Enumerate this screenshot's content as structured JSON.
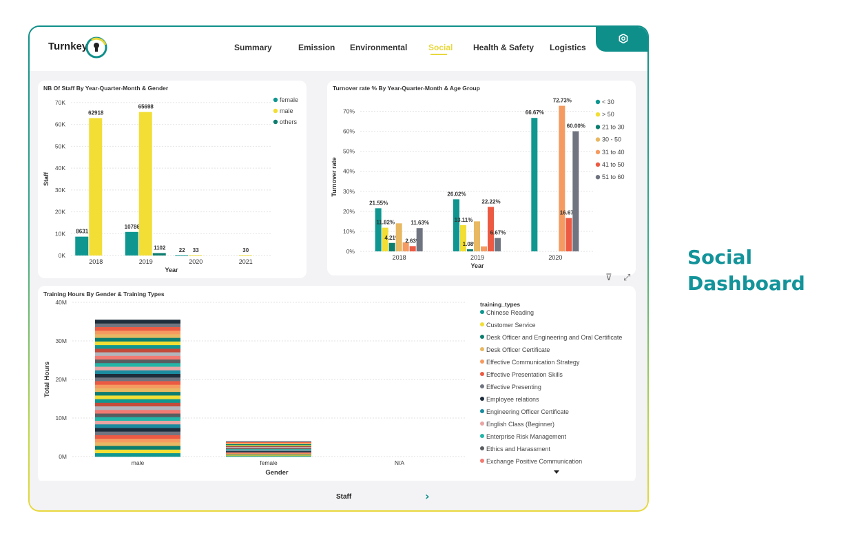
{
  "app": {
    "logo_text": "Turnkey"
  },
  "nav": {
    "items": [
      "Summary",
      "Emission",
      "Environmental",
      "Social",
      "Health & Safety",
      "Logistics"
    ],
    "active": "Social"
  },
  "side_title": {
    "line1": "Social",
    "line2": "Dashboard"
  },
  "footer": {
    "label": "Staff",
    "arrow": "›"
  },
  "tools": {
    "filter": "⊽",
    "focus": "⤢"
  },
  "colors": {
    "teal": "#0f9690",
    "yellow": "#f2de34",
    "darkteal": "#0c7d6e",
    "sand": "#e8b862",
    "orange": "#f59b61",
    "red": "#ec5a43",
    "gray": "#6f7480"
  },
  "chart_data": [
    {
      "type": "bar",
      "title": "NB Of Staff By Year-Quarter-Month & Gender",
      "xlabel": "Year",
      "ylabel": "Staff",
      "categories": [
        "2018",
        "2019",
        "2020",
        "2021"
      ],
      "ylim": [
        0,
        70000
      ],
      "ytick_labels": [
        "0K",
        "10K",
        "20K",
        "30K",
        "40K",
        "50K",
        "60K",
        "70K"
      ],
      "series": [
        {
          "name": "female",
          "color": "#0f9690",
          "values": [
            8631,
            10786,
            22,
            null
          ],
          "labels": [
            "8631",
            "10786",
            "22",
            ""
          ]
        },
        {
          "name": "male",
          "color": "#f2de34",
          "values": [
            62918,
            65698,
            33,
            30
          ],
          "labels": [
            "62918",
            "65698",
            "33",
            "30"
          ]
        },
        {
          "name": "others",
          "color": "#0c7d6e",
          "values": [
            null,
            1102,
            null,
            null
          ],
          "labels": [
            "",
            "1102",
            "",
            ""
          ]
        }
      ],
      "legend": "top-right"
    },
    {
      "type": "bar",
      "title": "Turnover rate % By Year-Quarter-Month & Age Group",
      "xlabel": "Year",
      "ylabel": "Turnover rate",
      "categories": [
        "2018",
        "2019",
        "2020"
      ],
      "ylim": [
        0,
        75
      ],
      "ytick_labels": [
        "0%",
        "10%",
        "20%",
        "30%",
        "40%",
        "50%",
        "60%",
        "70%"
      ],
      "series": [
        {
          "name": "< 30",
          "color": "#0f9690",
          "values": [
            21.55,
            26.02,
            66.67
          ],
          "labels": [
            "21.55%",
            "26.02%",
            "66.67%"
          ]
        },
        {
          "name": "> 50",
          "color": "#f2de34",
          "values": [
            11.82,
            13.11,
            0
          ],
          "labels": [
            "11.82%",
            "13.11%",
            ""
          ]
        },
        {
          "name": "21 to 30",
          "color": "#0c7d6e",
          "values": [
            4.21,
            1.08,
            0
          ],
          "labels": [
            "4.21%",
            "1.08%",
            ""
          ]
        },
        {
          "name": "30 - 50",
          "color": "#e8b862",
          "values": [
            14,
            15,
            0
          ],
          "labels": [
            "",
            "",
            ""
          ]
        },
        {
          "name": "31 to 40",
          "color": "#f59b61",
          "values": [
            4.5,
            2.5,
            72.73
          ],
          "labels": [
            "",
            "",
            "72.73%"
          ]
        },
        {
          "name": "41 to 50",
          "color": "#ec5a43",
          "values": [
            2.63,
            22.22,
            16.67
          ],
          "labels": [
            "2.63%",
            "22.22%",
            "16.67%"
          ]
        },
        {
          "name": "51 to 60",
          "color": "#6f7480",
          "values": [
            11.63,
            6.67,
            60.0
          ],
          "labels": [
            "11.63%",
            "6.67%",
            "60.00%"
          ]
        }
      ],
      "legend": "right"
    },
    {
      "type": "bar",
      "stacked": true,
      "title": "Training Hours By Gender & Training Types",
      "xlabel": "Gender",
      "ylabel": "Total Hours",
      "categories": [
        "male",
        "female",
        "N/A"
      ],
      "totals": [
        35500000,
        4000000,
        0
      ],
      "ylim": [
        0,
        40000000
      ],
      "ytick_labels": [
        "0M",
        "10M",
        "20M",
        "30M",
        "40M"
      ],
      "legend_title": "training_types",
      "legend": [
        {
          "name": "Chinese Reading",
          "color": "#0f9690"
        },
        {
          "name": "Customer Service",
          "color": "#f2de34"
        },
        {
          "name": "Desk Officer and Engineering and Oral Certificate",
          "color": "#0c7d6e"
        },
        {
          "name": "Desk Officer Certificate",
          "color": "#e8b862"
        },
        {
          "name": "Effective Communication Strategy",
          "color": "#f59b61"
        },
        {
          "name": "Effective Presentation Skills",
          "color": "#ec5a43"
        },
        {
          "name": "Effective Presenting",
          "color": "#6f7480"
        },
        {
          "name": "Employee relations",
          "color": "#1e2d3b"
        },
        {
          "name": "Engineering Officer Certificate",
          "color": "#1b8ba0"
        },
        {
          "name": "English Class (Beginner)",
          "color": "#e8a5a3"
        },
        {
          "name": "Enterprise Risk Management",
          "color": "#23b5a8"
        },
        {
          "name": "Ethics and Harassment",
          "color": "#5a5d60"
        },
        {
          "name": "Exchange Positive Communication",
          "color": "#f27a72"
        }
      ],
      "stack_palette": [
        "#0f9690",
        "#f2de34",
        "#0c7d6e",
        "#e8b862",
        "#f59b61",
        "#ec5a43",
        "#6f7480",
        "#1e2d3b",
        "#1b8ba0",
        "#e8a5a3",
        "#23b5a8",
        "#5a5d60",
        "#f27a72",
        "#b2b5bc",
        "#c44a3a"
      ]
    }
  ]
}
